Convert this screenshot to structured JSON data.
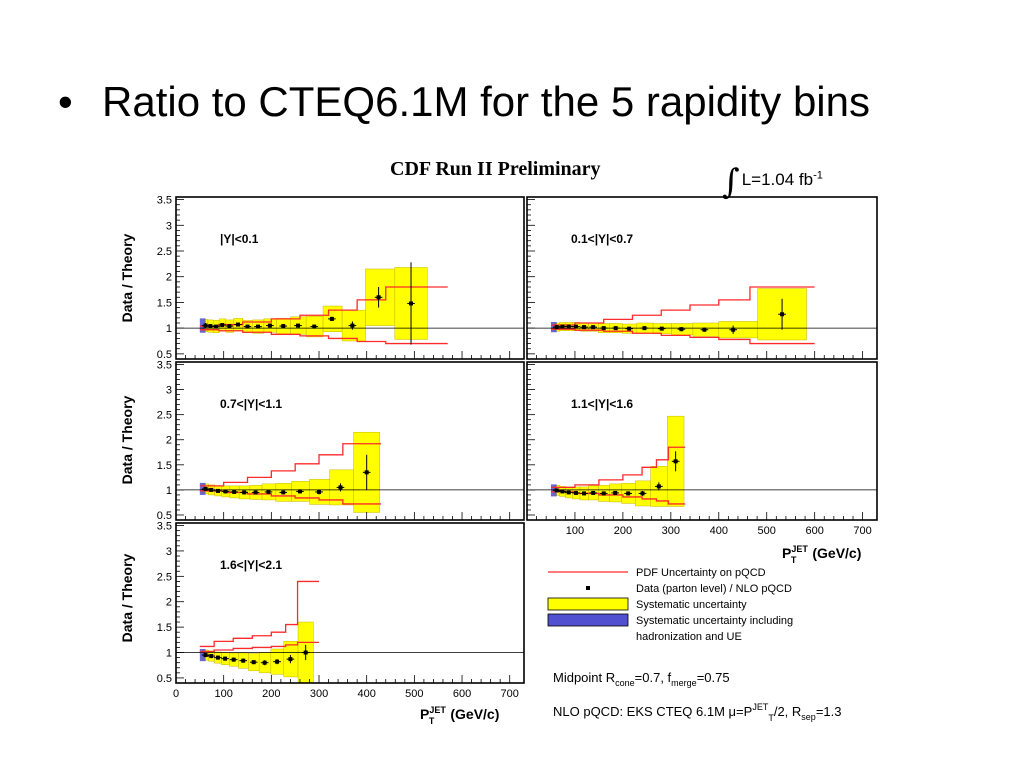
{
  "slide": {
    "bullet": "•",
    "title": "Ratio to CTEQ6.1M for the 5 rapidity bins"
  },
  "figure": {
    "header": "CDF Run II Preliminary",
    "luminosity": "L=1.04 fb",
    "luminosity_exp": "-1",
    "y_title": "Data / Theory",
    "x_title_main": "P",
    "x_title_sup": "JET",
    "x_title_sub": "T",
    "x_title_unit": "(GeV/c)",
    "notes": {
      "midpoint": "Midpoint  R",
      "midpoint_sub1": "cone",
      "midpoint_mid": "=0.7,  f",
      "midpoint_sub2": "merge",
      "midpoint_end": "=0.75",
      "nlo": "NLO pQCD: EKS CTEQ 6.1M  μ=P",
      "nlo_sup": "JET",
      "nlo_sub": "T",
      "nlo_mid": "/2, R",
      "nlo_sub2": "sep",
      "nlo_end": "=1.3"
    },
    "colors": {
      "systematic": "#ffff00",
      "systematic_ue": "#5050d0",
      "pdf": "#ff2a2a",
      "frame": "#000000"
    }
  },
  "chart_data": {
    "type": "scatter",
    "x_ticks": [
      "0",
      "100",
      "200",
      "300",
      "400",
      "500",
      "600",
      "700"
    ],
    "y_ticks_full": [
      "0.5",
      "1",
      "1.5",
      "2",
      "2.5",
      "3",
      "3.5"
    ],
    "y_ticks_short": [
      "0.5",
      "1",
      "1.5",
      "2",
      "2.5",
      "3"
    ],
    "xlim": [
      0,
      730
    ],
    "ylim": [
      0.4,
      3.55
    ],
    "legend": [
      {
        "key": "pdf",
        "label": "PDF Uncertainty on pQCD"
      },
      {
        "key": "data",
        "label": "Data (parton level) / NLO pQCD"
      },
      {
        "key": "systematic",
        "label": "Systematic uncertainty"
      },
      {
        "key": "systematic_ue",
        "label": "Systematic uncertainty including",
        "label2": "hadronization and UE"
      }
    ],
    "panels": [
      {
        "label": "|Y|<0.1",
        "points": [
          {
            "x": 62,
            "y": 1.05,
            "e": 0.05,
            "s": 0.12
          },
          {
            "x": 72,
            "y": 1.04,
            "e": 0.03,
            "s": 0.12
          },
          {
            "x": 84,
            "y": 1.03,
            "e": 0.03,
            "s": 0.12
          },
          {
            "x": 97,
            "y": 1.06,
            "e": 0.03,
            "s": 0.12
          },
          {
            "x": 112,
            "y": 1.04,
            "e": 0.03,
            "s": 0.12
          },
          {
            "x": 130,
            "y": 1.07,
            "e": 0.03,
            "s": 0.12
          },
          {
            "x": 150,
            "y": 1.03,
            "e": 0.03,
            "s": 0.12
          },
          {
            "x": 172,
            "y": 1.03,
            "e": 0.03,
            "s": 0.13
          },
          {
            "x": 197,
            "y": 1.05,
            "e": 0.03,
            "s": 0.13
          },
          {
            "x": 225,
            "y": 1.04,
            "e": 0.03,
            "s": 0.15
          },
          {
            "x": 256,
            "y": 1.05,
            "e": 0.03,
            "s": 0.17
          },
          {
            "x": 290,
            "y": 1.03,
            "e": 0.04,
            "s": 0.2
          },
          {
            "x": 327,
            "y": 1.18,
            "e": 0.04,
            "s": 0.25
          },
          {
            "x": 370,
            "y": 1.05,
            "e": 0.08,
            "s": 0.3
          },
          {
            "x": 425,
            "y": 1.6,
            "e": 0.2,
            "s": 0.55
          },
          {
            "x": 493,
            "y": 1.48,
            "e": 0.8,
            "s": 0.7
          }
        ],
        "pdf": [
          {
            "x0": 50,
            "x1": 90,
            "lo": 0.97,
            "hi": 1.04
          },
          {
            "x0": 90,
            "x1": 140,
            "lo": 0.95,
            "hi": 1.07
          },
          {
            "x0": 140,
            "x1": 200,
            "lo": 0.92,
            "hi": 1.12
          },
          {
            "x0": 200,
            "x1": 260,
            "lo": 0.88,
            "hi": 1.18
          },
          {
            "x0": 260,
            "x1": 320,
            "lo": 0.85,
            "hi": 1.25
          },
          {
            "x0": 320,
            "x1": 380,
            "lo": 0.8,
            "hi": 1.35
          },
          {
            "x0": 380,
            "x1": 440,
            "lo": 0.74,
            "hi": 1.55
          },
          {
            "x0": 440,
            "x1": 570,
            "lo": 0.7,
            "hi": 1.8
          }
        ]
      },
      {
        "label": "0.1<|Y|<0.7",
        "points": [
          {
            "x": 62,
            "y": 1.02,
            "e": 0.03,
            "s": 0.08
          },
          {
            "x": 74,
            "y": 1.03,
            "e": 0.03,
            "s": 0.08
          },
          {
            "x": 87,
            "y": 1.03,
            "e": 0.03,
            "s": 0.08
          },
          {
            "x": 102,
            "y": 1.03,
            "e": 0.03,
            "s": 0.08
          },
          {
            "x": 119,
            "y": 1.02,
            "e": 0.03,
            "s": 0.08
          },
          {
            "x": 138,
            "y": 1.02,
            "e": 0.03,
            "s": 0.08
          },
          {
            "x": 160,
            "y": 1.0,
            "e": 0.03,
            "s": 0.09
          },
          {
            "x": 185,
            "y": 1.0,
            "e": 0.03,
            "s": 0.09
          },
          {
            "x": 213,
            "y": 0.99,
            "e": 0.03,
            "s": 0.09
          },
          {
            "x": 245,
            "y": 1.0,
            "e": 0.03,
            "s": 0.1
          },
          {
            "x": 281,
            "y": 0.99,
            "e": 0.03,
            "s": 0.1
          },
          {
            "x": 322,
            "y": 0.98,
            "e": 0.04,
            "s": 0.11
          },
          {
            "x": 370,
            "y": 0.97,
            "e": 0.04,
            "s": 0.13
          },
          {
            "x": 430,
            "y": 0.97,
            "e": 0.08,
            "s": 0.16
          },
          {
            "x": 532,
            "y": 1.27,
            "e": 0.3,
            "s": 0.5
          }
        ],
        "pdf": [
          {
            "x0": 50,
            "x1": 100,
            "lo": 0.98,
            "hi": 1.06
          },
          {
            "x0": 100,
            "x1": 160,
            "lo": 0.96,
            "hi": 1.1
          },
          {
            "x0": 160,
            "x1": 220,
            "lo": 0.94,
            "hi": 1.17
          },
          {
            "x0": 220,
            "x1": 280,
            "lo": 0.9,
            "hi": 1.25
          },
          {
            "x0": 280,
            "x1": 340,
            "lo": 0.86,
            "hi": 1.35
          },
          {
            "x0": 340,
            "x1": 400,
            "lo": 0.82,
            "hi": 1.45
          },
          {
            "x0": 400,
            "x1": 465,
            "lo": 0.78,
            "hi": 1.55
          },
          {
            "x0": 465,
            "x1": 600,
            "lo": 0.7,
            "hi": 1.8
          }
        ]
      },
      {
        "label": "0.7<|Y|<1.1",
        "points": [
          {
            "x": 62,
            "y": 1.02,
            "e": 0.03,
            "s": 0.1
          },
          {
            "x": 74,
            "y": 1.0,
            "e": 0.03,
            "s": 0.1
          },
          {
            "x": 88,
            "y": 0.98,
            "e": 0.03,
            "s": 0.1
          },
          {
            "x": 104,
            "y": 0.97,
            "e": 0.03,
            "s": 0.11
          },
          {
            "x": 122,
            "y": 0.96,
            "e": 0.03,
            "s": 0.12
          },
          {
            "x": 143,
            "y": 0.95,
            "e": 0.03,
            "s": 0.13
          },
          {
            "x": 167,
            "y": 0.95,
            "e": 0.03,
            "s": 0.14
          },
          {
            "x": 194,
            "y": 0.96,
            "e": 0.03,
            "s": 0.16
          },
          {
            "x": 225,
            "y": 0.95,
            "e": 0.03,
            "s": 0.18
          },
          {
            "x": 260,
            "y": 0.97,
            "e": 0.04,
            "s": 0.2
          },
          {
            "x": 300,
            "y": 0.96,
            "e": 0.05,
            "s": 0.25
          },
          {
            "x": 345,
            "y": 1.05,
            "e": 0.08,
            "s": 0.35
          },
          {
            "x": 400,
            "y": 1.35,
            "e": 0.35,
            "s": 0.8
          }
        ],
        "pdf": [
          {
            "x0": 50,
            "x1": 100,
            "lo": 0.98,
            "hi": 1.08
          },
          {
            "x0": 100,
            "x1": 150,
            "lo": 0.95,
            "hi": 1.15
          },
          {
            "x0": 150,
            "x1": 200,
            "lo": 0.92,
            "hi": 1.25
          },
          {
            "x0": 200,
            "x1": 250,
            "lo": 0.88,
            "hi": 1.38
          },
          {
            "x0": 250,
            "x1": 300,
            "lo": 0.84,
            "hi": 1.52
          },
          {
            "x0": 300,
            "x1": 350,
            "lo": 0.8,
            "hi": 1.7
          },
          {
            "x0": 350,
            "x1": 430,
            "lo": 0.72,
            "hi": 1.92
          }
        ]
      },
      {
        "label": "1.1<|Y|<1.6",
        "points": [
          {
            "x": 62,
            "y": 0.99,
            "e": 0.03,
            "s": 0.1
          },
          {
            "x": 74,
            "y": 0.97,
            "e": 0.03,
            "s": 0.1
          },
          {
            "x": 87,
            "y": 0.95,
            "e": 0.03,
            "s": 0.11
          },
          {
            "x": 102,
            "y": 0.94,
            "e": 0.03,
            "s": 0.12
          },
          {
            "x": 119,
            "y": 0.93,
            "e": 0.03,
            "s": 0.13
          },
          {
            "x": 138,
            "y": 0.94,
            "e": 0.03,
            "s": 0.14
          },
          {
            "x": 160,
            "y": 0.93,
            "e": 0.03,
            "s": 0.16
          },
          {
            "x": 184,
            "y": 0.94,
            "e": 0.03,
            "s": 0.18
          },
          {
            "x": 211,
            "y": 0.93,
            "e": 0.04,
            "s": 0.2
          },
          {
            "x": 241,
            "y": 0.93,
            "e": 0.05,
            "s": 0.25
          },
          {
            "x": 275,
            "y": 1.07,
            "e": 0.08,
            "s": 0.4
          },
          {
            "x": 310,
            "y": 1.57,
            "e": 0.2,
            "s": 0.9
          }
        ],
        "pdf": [
          {
            "x0": 50,
            "x1": 100,
            "lo": 0.96,
            "hi": 1.05
          },
          {
            "x0": 100,
            "x1": 150,
            "lo": 0.93,
            "hi": 1.1
          },
          {
            "x0": 150,
            "x1": 200,
            "lo": 0.9,
            "hi": 1.2
          },
          {
            "x0": 200,
            "x1": 240,
            "lo": 0.86,
            "hi": 1.3
          },
          {
            "x0": 240,
            "x1": 270,
            "lo": 0.82,
            "hi": 1.45
          },
          {
            "x0": 270,
            "x1": 295,
            "lo": 0.78,
            "hi": 1.6
          },
          {
            "x0": 295,
            "x1": 330,
            "lo": 0.72,
            "hi": 1.85
          }
        ]
      },
      {
        "label": "1.6<|Y|<2.1",
        "points": [
          {
            "x": 62,
            "y": 0.95,
            "e": 0.04,
            "s": 0.1
          },
          {
            "x": 74,
            "y": 0.93,
            "e": 0.04,
            "s": 0.1
          },
          {
            "x": 88,
            "y": 0.9,
            "e": 0.04,
            "s": 0.11
          },
          {
            "x": 103,
            "y": 0.88,
            "e": 0.04,
            "s": 0.12
          },
          {
            "x": 121,
            "y": 0.86,
            "e": 0.04,
            "s": 0.13
          },
          {
            "x": 141,
            "y": 0.84,
            "e": 0.04,
            "s": 0.15
          },
          {
            "x": 163,
            "y": 0.81,
            "e": 0.04,
            "s": 0.17
          },
          {
            "x": 186,
            "y": 0.8,
            "e": 0.05,
            "s": 0.2
          },
          {
            "x": 212,
            "y": 0.82,
            "e": 0.05,
            "s": 0.25
          },
          {
            "x": 240,
            "y": 0.87,
            "e": 0.08,
            "s": 0.35
          },
          {
            "x": 272,
            "y": 1.0,
            "e": 0.15,
            "s": 0.6
          }
        ],
        "pdf": [
          {
            "x0": 50,
            "x1": 80,
            "lo": 1.02,
            "hi": 1.12
          },
          {
            "x0": 80,
            "x1": 120,
            "lo": 1.05,
            "hi": 1.22
          },
          {
            "x0": 120,
            "x1": 160,
            "lo": 1.08,
            "hi": 1.28
          },
          {
            "x0": 160,
            "x1": 200,
            "lo": 1.1,
            "hi": 1.33
          },
          {
            "x0": 200,
            "x1": 230,
            "lo": 1.12,
            "hi": 1.4
          },
          {
            "x0": 230,
            "x1": 255,
            "lo": 1.15,
            "hi": 1.55
          },
          {
            "x0": 255,
            "x1": 300,
            "lo": 1.2,
            "hi": 2.4
          }
        ]
      }
    ]
  }
}
